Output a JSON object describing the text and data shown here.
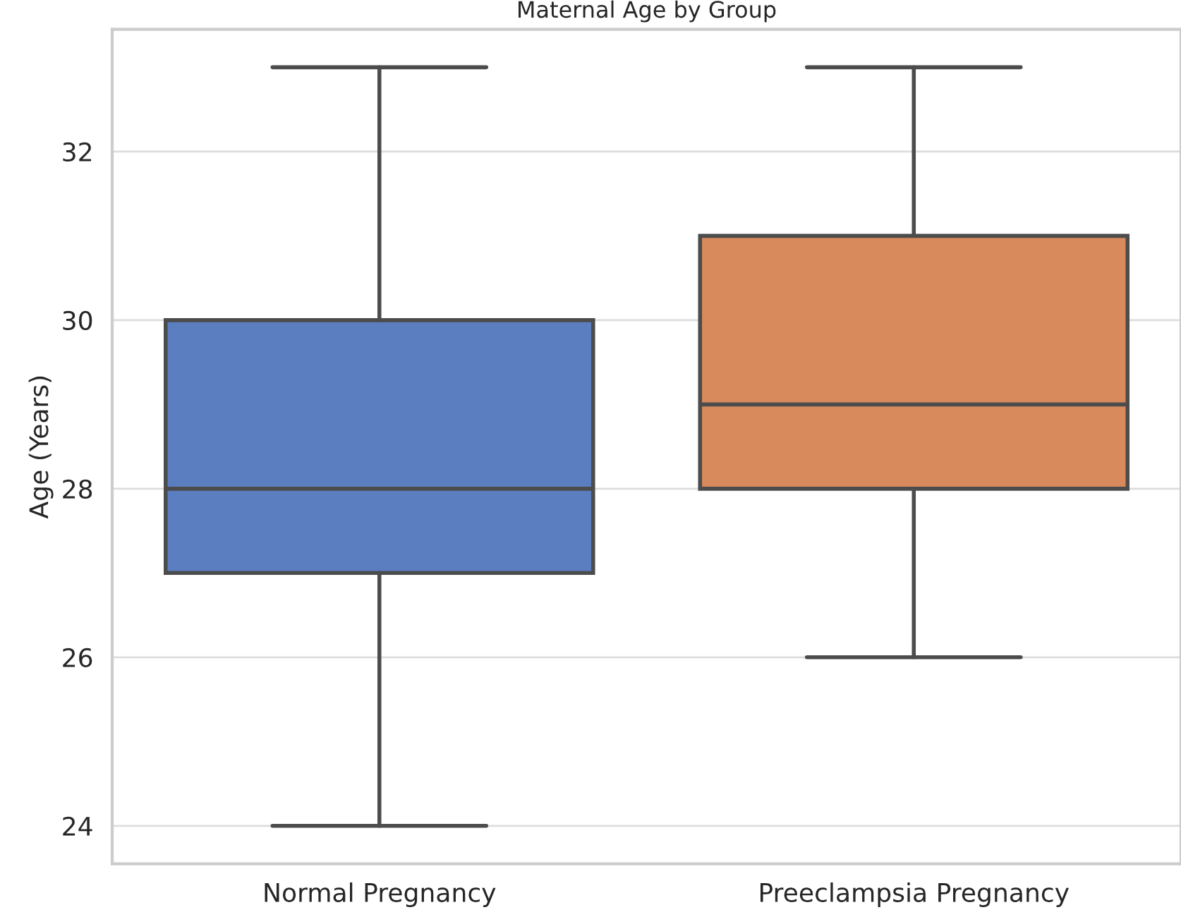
{
  "chart_data": {
    "type": "box",
    "title": "Maternal Age by Group",
    "ylabel": "Age (Years)",
    "categories": [
      "Normal Pregnancy",
      "Preeclampsia Pregnancy"
    ],
    "boxes": [
      {
        "low": 24,
        "q1": 27,
        "median": 28,
        "q3": 30,
        "high": 33
      },
      {
        "low": 26,
        "q1": 28,
        "median": 29,
        "q3": 31,
        "high": 33
      }
    ],
    "colors": [
      "#5a7ec0",
      "#d88a5d"
    ],
    "ylim": [
      23.55,
      33.45
    ],
    "yticks": [
      24,
      26,
      28,
      30,
      32
    ],
    "grid": "y"
  }
}
